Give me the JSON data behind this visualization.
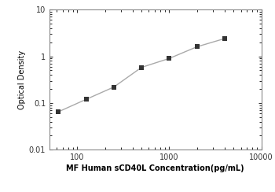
{
  "x_data": [
    62.5,
    125,
    250,
    500,
    1000,
    2000,
    4000
  ],
  "y_data": [
    0.065,
    0.12,
    0.22,
    0.58,
    0.9,
    1.6,
    2.4
  ],
  "xlabel": "MF Human sCD40L Concentration(pg/mL)",
  "ylabel": "Optical Density",
  "xlim": [
    50,
    10000
  ],
  "ylim": [
    0.01,
    10
  ],
  "line_color": "#aaaaaa",
  "marker_color": "#333333",
  "marker_style": "s",
  "marker_size": 4,
  "background_color": "#ffffff",
  "xticks": [
    100,
    1000,
    10000
  ],
  "yticks": [
    0.01,
    0.1,
    1,
    10
  ],
  "xlabel_fontsize": 7,
  "ylabel_fontsize": 7,
  "tick_labelsize": 7,
  "spine_color": "#888888",
  "linewidth": 1.0
}
